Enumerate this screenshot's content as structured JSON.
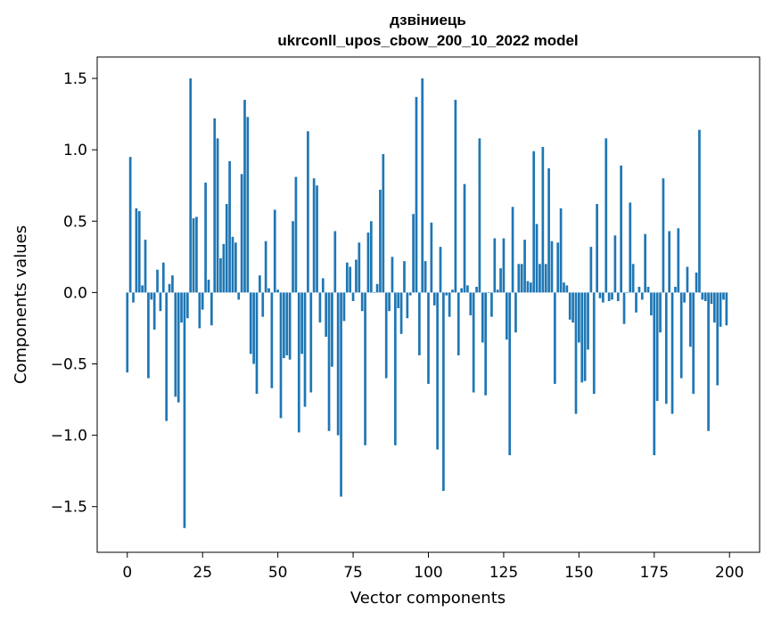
{
  "chart_data": {
    "type": "bar",
    "title_line1": "дзвіниець",
    "title_line2": "ukrconll_upos_cbow_200_10_2022 model",
    "xlabel": "Vector components",
    "ylabel": "Components values",
    "xlim": [
      -10,
      210
    ],
    "ylim": [
      -1.82,
      1.65
    ],
    "xticks": [
      0,
      25,
      50,
      75,
      100,
      125,
      150,
      175,
      200
    ],
    "xtick_labels": [
      "0",
      "25",
      "50",
      "75",
      "100",
      "125",
      "150",
      "175",
      "200"
    ],
    "yticks": [
      -1.5,
      -1.0,
      -0.5,
      0.0,
      0.5,
      1.0,
      1.5
    ],
    "ytick_labels": [
      "−1.5",
      "−1.0",
      "−0.5",
      "0.0",
      "0.5",
      "1.0",
      "1.5"
    ],
    "bar_color": "#1f77b4",
    "grid": false,
    "x": [
      0,
      1,
      2,
      3,
      4,
      5,
      6,
      7,
      8,
      9,
      10,
      11,
      12,
      13,
      14,
      15,
      16,
      17,
      18,
      19,
      20,
      21,
      22,
      23,
      24,
      25,
      26,
      27,
      28,
      29,
      30,
      31,
      32,
      33,
      34,
      35,
      36,
      37,
      38,
      39,
      40,
      41,
      42,
      43,
      44,
      45,
      46,
      47,
      48,
      49,
      50,
      51,
      52,
      53,
      54,
      55,
      56,
      57,
      58,
      59,
      60,
      61,
      62,
      63,
      64,
      65,
      66,
      67,
      68,
      69,
      70,
      71,
      72,
      73,
      74,
      75,
      76,
      77,
      78,
      79,
      80,
      81,
      82,
      83,
      84,
      85,
      86,
      87,
      88,
      89,
      90,
      91,
      92,
      93,
      94,
      95,
      96,
      97,
      98,
      99,
      100,
      101,
      102,
      103,
      104,
      105,
      106,
      107,
      108,
      109,
      110,
      111,
      112,
      113,
      114,
      115,
      116,
      117,
      118,
      119,
      120,
      121,
      122,
      123,
      124,
      125,
      126,
      127,
      128,
      129,
      130,
      131,
      132,
      133,
      134,
      135,
      136,
      137,
      138,
      139,
      140,
      141,
      142,
      143,
      144,
      145,
      146,
      147,
      148,
      149,
      150,
      151,
      152,
      153,
      154,
      155,
      156,
      157,
      158,
      159,
      160,
      161,
      162,
      163,
      164,
      165,
      166,
      167,
      168,
      169,
      170,
      171,
      172,
      173,
      174,
      175,
      176,
      177,
      178,
      179,
      180,
      181,
      182,
      183,
      184,
      185,
      186,
      187,
      188,
      189,
      190,
      191,
      192,
      193,
      194,
      195,
      196,
      197,
      198,
      199
    ],
    "values": [
      -0.56,
      0.95,
      -0.07,
      0.59,
      0.57,
      0.05,
      0.37,
      -0.6,
      -0.05,
      -0.26,
      0.16,
      -0.13,
      0.21,
      -0.9,
      0.06,
      0.12,
      -0.73,
      -0.77,
      -0.21,
      -1.65,
      -0.18,
      1.5,
      0.52,
      0.53,
      -0.25,
      -0.12,
      0.77,
      0.09,
      -0.23,
      1.22,
      1.08,
      0.24,
      0.34,
      0.62,
      0.92,
      0.39,
      0.35,
      -0.05,
      0.83,
      1.35,
      1.23,
      -0.43,
      -0.5,
      -0.71,
      0.12,
      -0.17,
      0.36,
      0.03,
      -0.67,
      0.58,
      0.02,
      -0.88,
      -0.46,
      -0.44,
      -0.47,
      0.5,
      0.81,
      -0.98,
      -0.43,
      -0.8,
      1.13,
      -0.7,
      0.8,
      0.75,
      -0.21,
      0.1,
      -0.31,
      -0.97,
      -0.52,
      0.43,
      -1.0,
      -1.43,
      -0.2,
      0.21,
      0.18,
      -0.06,
      0.23,
      0.35,
      -0.13,
      -1.07,
      0.42,
      0.5,
      0.0,
      0.06,
      0.72,
      0.97,
      -0.6,
      -0.13,
      0.25,
      -1.07,
      -0.11,
      -0.29,
      0.22,
      -0.18,
      -0.02,
      0.55,
      1.37,
      -0.44,
      1.5,
      0.22,
      -0.64,
      0.49,
      -0.09,
      -1.1,
      0.32,
      -1.39,
      -0.02,
      -0.17,
      0.02,
      1.35,
      -0.44,
      0.03,
      0.76,
      0.05,
      -0.16,
      -0.7,
      0.04,
      1.08,
      -0.35,
      -0.72,
      0.0,
      -0.17,
      0.38,
      0.02,
      0.17,
      0.38,
      -0.33,
      -1.14,
      0.6,
      -0.28,
      0.2,
      0.2,
      0.37,
      0.08,
      0.07,
      0.99,
      0.48,
      0.2,
      1.02,
      0.2,
      0.87,
      0.36,
      -0.64,
      0.35,
      0.59,
      0.07,
      0.05,
      -0.19,
      -0.21,
      -0.85,
      -0.35,
      -0.63,
      -0.62,
      -0.4,
      0.32,
      -0.71,
      0.62,
      -0.04,
      -0.07,
      1.08,
      -0.06,
      -0.05,
      0.4,
      -0.06,
      0.89,
      -0.22,
      0.0,
      0.63,
      0.2,
      -0.14,
      0.04,
      -0.05,
      0.41,
      0.04,
      -0.16,
      -1.14,
      -0.76,
      -0.28,
      0.8,
      -0.78,
      0.43,
      -0.85,
      0.04,
      0.45,
      -0.6,
      -0.07,
      0.18,
      -0.38,
      -0.71,
      0.14,
      1.14,
      -0.05,
      -0.06,
      -0.97,
      -0.08,
      -0.21,
      -0.65,
      -0.24,
      -0.05,
      -0.23
    ]
  }
}
